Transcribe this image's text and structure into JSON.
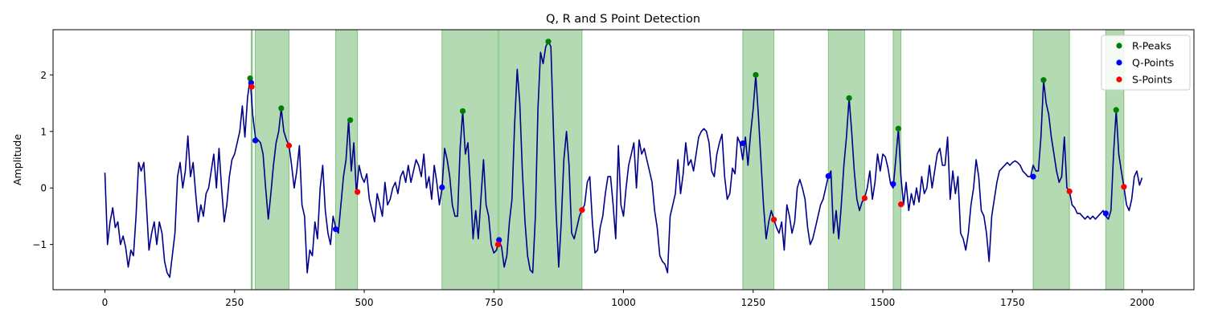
{
  "chart_data": {
    "type": "line",
    "title": "Q, R and S Point Detection",
    "xlabel": "",
    "ylabel": "Amplitude",
    "xlim": [
      -100,
      2100
    ],
    "ylim": [
      -1.8,
      2.8
    ],
    "xticks": [
      0,
      250,
      500,
      750,
      1000,
      1250,
      1500,
      1750,
      2000
    ],
    "yticks": [
      -1,
      0,
      1,
      2
    ],
    "grid": false,
    "legend_position": "top-right",
    "colors": {
      "signal": "#00008b",
      "r_peaks": "#008000",
      "q_points": "#0000ff",
      "s_points": "#ff0000",
      "span": "#4aa84a"
    },
    "signal_points": [
      [
        0,
        0.27
      ],
      [
        5,
        -1.0
      ],
      [
        10,
        -0.6
      ],
      [
        15,
        -0.35
      ],
      [
        20,
        -0.7
      ],
      [
        25,
        -0.6
      ],
      [
        30,
        -1.0
      ],
      [
        35,
        -0.85
      ],
      [
        40,
        -1.05
      ],
      [
        45,
        -1.4
      ],
      [
        50,
        -1.1
      ],
      [
        55,
        -1.2
      ],
      [
        60,
        -0.5
      ],
      [
        65,
        0.45
      ],
      [
        70,
        0.3
      ],
      [
        75,
        0.45
      ],
      [
        80,
        -0.3
      ],
      [
        85,
        -1.1
      ],
      [
        90,
        -0.8
      ],
      [
        95,
        -0.6
      ],
      [
        100,
        -1.0
      ],
      [
        105,
        -0.6
      ],
      [
        110,
        -0.8
      ],
      [
        115,
        -1.3
      ],
      [
        120,
        -1.5
      ],
      [
        125,
        -1.58
      ],
      [
        130,
        -1.2
      ],
      [
        135,
        -0.8
      ],
      [
        140,
        0.2
      ],
      [
        145,
        0.45
      ],
      [
        150,
        0.0
      ],
      [
        155,
        0.3
      ],
      [
        160,
        0.92
      ],
      [
        165,
        0.2
      ],
      [
        170,
        0.45
      ],
      [
        175,
        -0.1
      ],
      [
        180,
        -0.6
      ],
      [
        185,
        -0.3
      ],
      [
        190,
        -0.5
      ],
      [
        195,
        -0.1
      ],
      [
        200,
        0.0
      ],
      [
        205,
        0.3
      ],
      [
        210,
        0.6
      ],
      [
        215,
        0.0
      ],
      [
        220,
        0.7
      ],
      [
        225,
        0.0
      ],
      [
        230,
        -0.6
      ],
      [
        235,
        -0.3
      ],
      [
        240,
        0.2
      ],
      [
        245,
        0.5
      ],
      [
        250,
        0.6
      ],
      [
        255,
        0.8
      ],
      [
        260,
        1.0
      ],
      [
        265,
        1.45
      ],
      [
        270,
        0.9
      ],
      [
        275,
        1.6
      ],
      [
        280,
        1.94
      ],
      [
        285,
        1.3
      ],
      [
        290,
        0.9
      ],
      [
        295,
        0.85
      ],
      [
        300,
        0.8
      ],
      [
        305,
        0.6
      ],
      [
        310,
        0.0
      ],
      [
        315,
        -0.55
      ],
      [
        320,
        -0.1
      ],
      [
        325,
        0.4
      ],
      [
        330,
        0.8
      ],
      [
        335,
        1.0
      ],
      [
        340,
        1.41
      ],
      [
        345,
        1.0
      ],
      [
        350,
        0.85
      ],
      [
        355,
        0.75
      ],
      [
        360,
        0.4
      ],
      [
        365,
        0.0
      ],
      [
        370,
        0.3
      ],
      [
        375,
        0.75
      ],
      [
        380,
        -0.3
      ],
      [
        385,
        -0.5
      ],
      [
        390,
        -1.5
      ],
      [
        395,
        -1.1
      ],
      [
        400,
        -1.2
      ],
      [
        405,
        -0.6
      ],
      [
        410,
        -0.9
      ],
      [
        415,
        0.0
      ],
      [
        420,
        0.4
      ],
      [
        425,
        -0.4
      ],
      [
        430,
        -0.8
      ],
      [
        435,
        -1.0
      ],
      [
        440,
        -0.5
      ],
      [
        445,
        -0.7
      ],
      [
        450,
        -0.8
      ],
      [
        455,
        -0.3
      ],
      [
        460,
        0.2
      ],
      [
        465,
        0.5
      ],
      [
        470,
        1.2
      ],
      [
        475,
        0.3
      ],
      [
        480,
        0.8
      ],
      [
        485,
        -0.1
      ],
      [
        490,
        0.4
      ],
      [
        495,
        0.2
      ],
      [
        500,
        0.1
      ],
      [
        505,
        0.25
      ],
      [
        510,
        -0.2
      ],
      [
        515,
        -0.4
      ],
      [
        520,
        -0.6
      ],
      [
        525,
        -0.1
      ],
      [
        530,
        -0.3
      ],
      [
        535,
        -0.5
      ],
      [
        540,
        0.1
      ],
      [
        545,
        -0.3
      ],
      [
        550,
        -0.2
      ],
      [
        555,
        0.0
      ],
      [
        560,
        0.1
      ],
      [
        565,
        -0.1
      ],
      [
        570,
        0.2
      ],
      [
        575,
        0.3
      ],
      [
        580,
        0.1
      ],
      [
        585,
        0.4
      ],
      [
        590,
        0.1
      ],
      [
        595,
        0.3
      ],
      [
        600,
        0.5
      ],
      [
        605,
        0.4
      ],
      [
        610,
        0.2
      ],
      [
        615,
        0.6
      ],
      [
        620,
        0.0
      ],
      [
        625,
        0.2
      ],
      [
        630,
        -0.2
      ],
      [
        635,
        0.4
      ],
      [
        640,
        0.1
      ],
      [
        645,
        -0.3
      ],
      [
        650,
        0.0
      ],
      [
        655,
        0.7
      ],
      [
        660,
        0.5
      ],
      [
        665,
        0.2
      ],
      [
        670,
        -0.3
      ],
      [
        675,
        -0.5
      ],
      [
        680,
        -0.5
      ],
      [
        685,
        0.7
      ],
      [
        690,
        1.36
      ],
      [
        695,
        0.6
      ],
      [
        700,
        0.8
      ],
      [
        705,
        0.0
      ],
      [
        710,
        -0.9
      ],
      [
        715,
        -0.4
      ],
      [
        720,
        -0.9
      ],
      [
        725,
        -0.2
      ],
      [
        730,
        0.5
      ],
      [
        735,
        -0.3
      ],
      [
        740,
        -0.5
      ],
      [
        745,
        -1.0
      ],
      [
        750,
        -1.15
      ],
      [
        755,
        -1.1
      ],
      [
        760,
        -0.92
      ],
      [
        765,
        -1.05
      ],
      [
        770,
        -1.4
      ],
      [
        775,
        -1.2
      ],
      [
        780,
        -0.6
      ],
      [
        785,
        -0.2
      ],
      [
        790,
        1.1
      ],
      [
        795,
        2.1
      ],
      [
        800,
        1.5
      ],
      [
        805,
        0.3
      ],
      [
        810,
        -0.6
      ],
      [
        815,
        -1.2
      ],
      [
        820,
        -1.45
      ],
      [
        825,
        -1.5
      ],
      [
        830,
        -0.5
      ],
      [
        835,
        1.4
      ],
      [
        840,
        2.4
      ],
      [
        845,
        2.2
      ],
      [
        850,
        2.5
      ],
      [
        855,
        2.59
      ],
      [
        860,
        2.5
      ],
      [
        865,
        1.0
      ],
      [
        870,
        -0.4
      ],
      [
        875,
        -1.4
      ],
      [
        880,
        -0.6
      ],
      [
        885,
        0.5
      ],
      [
        890,
        1.0
      ],
      [
        895,
        0.4
      ],
      [
        900,
        -0.8
      ],
      [
        905,
        -0.9
      ],
      [
        910,
        -0.7
      ],
      [
        915,
        -0.5
      ],
      [
        920,
        -0.39
      ],
      [
        925,
        -0.3
      ],
      [
        930,
        0.1
      ],
      [
        935,
        0.2
      ],
      [
        940,
        -0.6
      ],
      [
        945,
        -1.15
      ],
      [
        950,
        -1.1
      ],
      [
        955,
        -0.7
      ],
      [
        960,
        -0.5
      ],
      [
        965,
        -0.1
      ],
      [
        970,
        0.2
      ],
      [
        975,
        0.2
      ],
      [
        980,
        -0.3
      ],
      [
        985,
        -0.9
      ],
      [
        990,
        0.75
      ],
      [
        995,
        -0.3
      ],
      [
        1000,
        -0.5
      ],
      [
        1005,
        0.0
      ],
      [
        1010,
        0.4
      ],
      [
        1015,
        0.6
      ],
      [
        1020,
        0.8
      ],
      [
        1025,
        0.0
      ],
      [
        1030,
        0.85
      ],
      [
        1035,
        0.6
      ],
      [
        1040,
        0.7
      ],
      [
        1045,
        0.5
      ],
      [
        1050,
        0.3
      ],
      [
        1055,
        0.1
      ],
      [
        1060,
        -0.4
      ],
      [
        1065,
        -0.7
      ],
      [
        1070,
        -1.2
      ],
      [
        1075,
        -1.3
      ],
      [
        1080,
        -1.35
      ],
      [
        1085,
        -1.5
      ],
      [
        1090,
        -0.5
      ],
      [
        1095,
        -0.3
      ],
      [
        1100,
        -0.1
      ],
      [
        1105,
        0.5
      ],
      [
        1110,
        -0.1
      ],
      [
        1115,
        0.25
      ],
      [
        1120,
        0.8
      ],
      [
        1125,
        0.4
      ],
      [
        1130,
        0.5
      ],
      [
        1135,
        0.3
      ],
      [
        1140,
        0.6
      ],
      [
        1145,
        0.9
      ],
      [
        1150,
        1.0
      ],
      [
        1155,
        1.05
      ],
      [
        1160,
        1.0
      ],
      [
        1165,
        0.8
      ],
      [
        1170,
        0.3
      ],
      [
        1175,
        0.2
      ],
      [
        1180,
        0.6
      ],
      [
        1185,
        0.8
      ],
      [
        1190,
        0.95
      ],
      [
        1195,
        0.2
      ],
      [
        1200,
        -0.2
      ],
      [
        1205,
        -0.1
      ],
      [
        1210,
        0.35
      ],
      [
        1215,
        0.25
      ],
      [
        1220,
        0.9
      ],
      [
        1225,
        0.79
      ],
      [
        1230,
        0.5
      ],
      [
        1235,
        0.9
      ],
      [
        1240,
        0.4
      ],
      [
        1245,
        0.95
      ],
      [
        1250,
        1.4
      ],
      [
        1255,
        2.0
      ],
      [
        1260,
        1.3
      ],
      [
        1265,
        0.5
      ],
      [
        1270,
        -0.3
      ],
      [
        1275,
        -0.9
      ],
      [
        1280,
        -0.6
      ],
      [
        1285,
        -0.4
      ],
      [
        1290,
        -0.56
      ],
      [
        1295,
        -0.7
      ],
      [
        1300,
        -0.8
      ],
      [
        1305,
        -0.6
      ],
      [
        1310,
        -1.1
      ],
      [
        1315,
        -0.3
      ],
      [
        1320,
        -0.5
      ],
      [
        1325,
        -0.8
      ],
      [
        1330,
        -0.6
      ],
      [
        1335,
        0.0
      ],
      [
        1340,
        0.15
      ],
      [
        1345,
        0.0
      ],
      [
        1350,
        -0.2
      ],
      [
        1355,
        -0.7
      ],
      [
        1360,
        -1.0
      ],
      [
        1365,
        -0.9
      ],
      [
        1370,
        -0.7
      ],
      [
        1375,
        -0.5
      ],
      [
        1380,
        -0.3
      ],
      [
        1385,
        -0.2
      ],
      [
        1390,
        0.0
      ],
      [
        1395,
        0.21
      ],
      [
        1400,
        0.3
      ],
      [
        1405,
        -0.8
      ],
      [
        1410,
        -0.4
      ],
      [
        1415,
        -0.9
      ],
      [
        1420,
        -0.3
      ],
      [
        1425,
        0.4
      ],
      [
        1430,
        0.9
      ],
      [
        1435,
        1.59
      ],
      [
        1440,
        1.0
      ],
      [
        1445,
        0.3
      ],
      [
        1450,
        -0.2
      ],
      [
        1455,
        -0.4
      ],
      [
        1460,
        -0.25
      ],
      [
        1465,
        -0.18
      ],
      [
        1470,
        0.0
      ],
      [
        1475,
        0.3
      ],
      [
        1480,
        -0.2
      ],
      [
        1485,
        0.1
      ],
      [
        1490,
        0.6
      ],
      [
        1495,
        0.3
      ],
      [
        1500,
        0.6
      ],
      [
        1505,
        0.55
      ],
      [
        1510,
        0.35
      ],
      [
        1515,
        0.07
      ],
      [
        1520,
        0.0
      ],
      [
        1525,
        0.5
      ],
      [
        1530,
        1.05
      ],
      [
        1535,
        0.2
      ],
      [
        1540,
        -0.3
      ],
      [
        1545,
        0.1
      ],
      [
        1550,
        -0.4
      ],
      [
        1555,
        -0.1
      ],
      [
        1560,
        -0.3
      ],
      [
        1565,
        0.0
      ],
      [
        1570,
        -0.25
      ],
      [
        1575,
        0.2
      ],
      [
        1580,
        -0.1
      ],
      [
        1585,
        0.0
      ],
      [
        1590,
        0.4
      ],
      [
        1595,
        0.0
      ],
      [
        1600,
        0.3
      ],
      [
        1605,
        0.6
      ],
      [
        1610,
        0.7
      ],
      [
        1615,
        0.4
      ],
      [
        1620,
        0.4
      ],
      [
        1625,
        0.9
      ],
      [
        1630,
        -0.2
      ],
      [
        1635,
        0.3
      ],
      [
        1640,
        -0.1
      ],
      [
        1645,
        0.2
      ],
      [
        1650,
        -0.8
      ],
      [
        1655,
        -0.9
      ],
      [
        1660,
        -1.1
      ],
      [
        1665,
        -0.8
      ],
      [
        1670,
        -0.3
      ],
      [
        1675,
        0.0
      ],
      [
        1680,
        0.5
      ],
      [
        1685,
        0.2
      ],
      [
        1690,
        -0.4
      ],
      [
        1695,
        -0.5
      ],
      [
        1700,
        -0.8
      ],
      [
        1705,
        -1.3
      ],
      [
        1710,
        -0.5
      ],
      [
        1715,
        -0.2
      ],
      [
        1720,
        0.1
      ],
      [
        1725,
        0.3
      ],
      [
        1730,
        0.35
      ],
      [
        1735,
        0.4
      ],
      [
        1740,
        0.45
      ],
      [
        1745,
        0.4
      ],
      [
        1750,
        0.45
      ],
      [
        1755,
        0.48
      ],
      [
        1760,
        0.45
      ],
      [
        1765,
        0.4
      ],
      [
        1770,
        0.3
      ],
      [
        1775,
        0.25
      ],
      [
        1780,
        0.2
      ],
      [
        1785,
        0.2
      ],
      [
        1790,
        0.4
      ],
      [
        1795,
        0.3
      ],
      [
        1800,
        0.3
      ],
      [
        1805,
        0.9
      ],
      [
        1810,
        1.9
      ],
      [
        1815,
        1.5
      ],
      [
        1820,
        1.3
      ],
      [
        1825,
        0.9
      ],
      [
        1830,
        0.6
      ],
      [
        1835,
        0.3
      ],
      [
        1840,
        0.1
      ],
      [
        1845,
        0.2
      ],
      [
        1850,
        0.9
      ],
      [
        1855,
        0.0
      ],
      [
        1860,
        -0.06
      ],
      [
        1865,
        -0.3
      ],
      [
        1870,
        -0.35
      ],
      [
        1875,
        -0.45
      ],
      [
        1880,
        -0.45
      ],
      [
        1885,
        -0.5
      ],
      [
        1890,
        -0.55
      ],
      [
        1895,
        -0.5
      ],
      [
        1900,
        -0.55
      ],
      [
        1905,
        -0.5
      ],
      [
        1910,
        -0.55
      ],
      [
        1915,
        -0.5
      ],
      [
        1920,
        -0.45
      ],
      [
        1925,
        -0.4
      ],
      [
        1930,
        -0.5
      ],
      [
        1935,
        -0.55
      ],
      [
        1940,
        -0.4
      ],
      [
        1945,
        0.6
      ],
      [
        1950,
        1.38
      ],
      [
        1955,
        0.6
      ],
      [
        1960,
        0.3
      ],
      [
        1965,
        0.02
      ],
      [
        1970,
        -0.3
      ],
      [
        1975,
        -0.4
      ],
      [
        1980,
        -0.2
      ],
      [
        1985,
        0.2
      ],
      [
        1990,
        0.3
      ],
      [
        1995,
        0.05
      ],
      [
        2000,
        0.18
      ]
    ],
    "r_peaks": {
      "name": "R-Peaks",
      "x": [
        280,
        340,
        473,
        690,
        855,
        1255,
        1435,
        1530,
        1810,
        1950
      ],
      "y": [
        1.94,
        1.41,
        1.2,
        1.36,
        2.59,
        2.0,
        1.59,
        1.05,
        1.91,
        1.38
      ]
    },
    "q_points": {
      "name": "Q-Points",
      "x": [
        282,
        290,
        445,
        650,
        760,
        1230,
        1395,
        1520,
        1790,
        1930
      ],
      "y": [
        1.86,
        0.84,
        -0.73,
        0.01,
        -0.92,
        0.79,
        0.21,
        0.07,
        0.2,
        -0.45
      ]
    },
    "s_points": {
      "name": "S-Points",
      "x": [
        283,
        355,
        487,
        758,
        920,
        1290,
        1465,
        1535,
        1860,
        1965
      ],
      "y": [
        1.79,
        0.75,
        -0.07,
        -1.0,
        -0.39,
        -0.56,
        -0.18,
        -0.29,
        -0.06,
        0.02
      ]
    },
    "shaded_regions": [
      [
        282,
        283
      ],
      [
        290,
        355
      ],
      [
        445,
        487
      ],
      [
        650,
        758
      ],
      [
        760,
        920
      ],
      [
        1230,
        1290
      ],
      [
        1395,
        1465
      ],
      [
        1520,
        1535
      ],
      [
        1790,
        1860
      ],
      [
        1930,
        1965
      ]
    ]
  }
}
